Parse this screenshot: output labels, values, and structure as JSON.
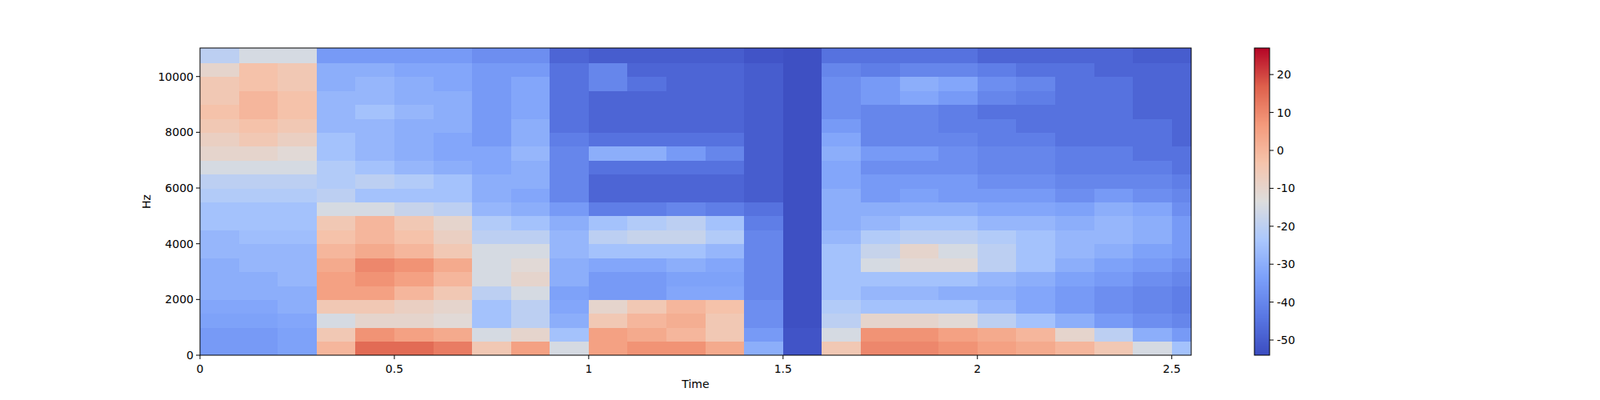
{
  "chart_data": {
    "type": "heatmap",
    "x_label": "Time",
    "y_label": "Hz",
    "x": [
      0,
      0.1,
      0.2,
      0.3,
      0.4,
      0.5,
      0.6,
      0.7,
      0.8,
      0.9,
      1.0,
      1.1,
      1.2,
      1.3,
      1.4,
      1.5,
      1.6,
      1.7,
      1.8,
      1.9,
      2.0,
      2.1,
      2.2,
      2.3,
      2.4,
      2.5
    ],
    "y": [
      0,
      500,
      1000,
      1500,
      2000,
      2500,
      3000,
      3500,
      4000,
      4500,
      5000,
      5500,
      6000,
      6500,
      7000,
      7500,
      8000,
      8500,
      9000,
      9500,
      10000,
      10500
    ],
    "values": [
      [
        -35,
        -35,
        -33,
        0,
        15,
        15,
        12,
        -5,
        5,
        -15,
        5,
        8,
        8,
        3,
        -30,
        -52,
        -5,
        10,
        10,
        8,
        5,
        3,
        0,
        -5,
        -15,
        -25
      ],
      [
        -35,
        -35,
        -33,
        -5,
        8,
        5,
        3,
        -15,
        -10,
        -25,
        5,
        3,
        0,
        -5,
        -35,
        -52,
        -15,
        8,
        8,
        5,
        3,
        0,
        -10,
        -20,
        -30,
        -35
      ],
      [
        -33,
        -33,
        -32,
        -15,
        -10,
        -10,
        -12,
        -25,
        -20,
        -30,
        -5,
        0,
        2,
        -5,
        -38,
        -53,
        -20,
        -10,
        -10,
        -12,
        -20,
        -25,
        -30,
        -35,
        -38,
        -40
      ],
      [
        -32,
        -32,
        -30,
        -5,
        -5,
        -8,
        -10,
        -25,
        -20,
        -32,
        -10,
        -5,
        0,
        -3,
        -38,
        -53,
        -22,
        -25,
        -25,
        -25,
        -28,
        -32,
        -35,
        -38,
        -40,
        -42
      ],
      [
        -30,
        -30,
        -30,
        5,
        5,
        0,
        -5,
        -20,
        -15,
        -33,
        -35,
        -35,
        -32,
        -32,
        -40,
        -53,
        -25,
        -28,
        -28,
        -30,
        -30,
        -32,
        -35,
        -38,
        -40,
        -42
      ],
      [
        -30,
        -30,
        -28,
        5,
        8,
        5,
        0,
        -15,
        -10,
        -30,
        -35,
        -35,
        -33,
        -33,
        -40,
        -53,
        -25,
        -25,
        -25,
        -25,
        -28,
        -30,
        -33,
        -35,
        -38,
        -40
      ],
      [
        -30,
        -28,
        -28,
        3,
        10,
        8,
        3,
        -15,
        -12,
        -30,
        -32,
        -32,
        -30,
        -32,
        -40,
        -53,
        -25,
        -15,
        -12,
        -12,
        -20,
        -25,
        -30,
        -33,
        -35,
        -38
      ],
      [
        -28,
        -28,
        -28,
        0,
        3,
        0,
        -5,
        -15,
        -15,
        -28,
        -25,
        -25,
        -25,
        -28,
        -40,
        -53,
        -25,
        -18,
        -10,
        -15,
        -20,
        -25,
        -28,
        -30,
        -33,
        -35
      ],
      [
        -28,
        -26,
        -26,
        -3,
        0,
        -3,
        -8,
        -20,
        -20,
        -28,
        -20,
        -18,
        -18,
        -22,
        -40,
        -53,
        -28,
        -22,
        -20,
        -20,
        -22,
        -25,
        -28,
        -28,
        -30,
        -35
      ],
      [
        -25,
        -25,
        -25,
        -5,
        0,
        -5,
        -10,
        -22,
        -25,
        -30,
        -25,
        -22,
        -20,
        -25,
        -42,
        -53,
        -30,
        -28,
        -25,
        -25,
        -28,
        -28,
        -30,
        -28,
        -30,
        -35
      ],
      [
        -25,
        -25,
        -25,
        -15,
        -15,
        -18,
        -20,
        -28,
        -30,
        -35,
        -42,
        -42,
        -40,
        -42,
        -45,
        -53,
        -30,
        -30,
        -30,
        -30,
        -32,
        -32,
        -33,
        -30,
        -32,
        -38
      ],
      [
        -22,
        -22,
        -22,
        -20,
        -25,
        -25,
        -25,
        -30,
        -32,
        -40,
        -48,
        -48,
        -48,
        -48,
        -50,
        -53,
        -30,
        -35,
        -33,
        -35,
        -35,
        -35,
        -38,
        -35,
        -38,
        -40
      ],
      [
        -20,
        -20,
        -20,
        -22,
        -20,
        -22,
        -25,
        -30,
        -30,
        -40,
        -48,
        -48,
        -48,
        -48,
        -50,
        -53,
        -32,
        -35,
        -35,
        -35,
        -38,
        -38,
        -40,
        -40,
        -40,
        -42
      ],
      [
        -15,
        -15,
        -15,
        -22,
        -25,
        -28,
        -30,
        -32,
        -30,
        -40,
        -45,
        -45,
        -45,
        -45,
        -50,
        -53,
        -32,
        -38,
        -38,
        -38,
        -40,
        -40,
        -42,
        -42,
        -42,
        -45
      ],
      [
        -10,
        -10,
        -12,
        -25,
        -28,
        -30,
        -32,
        -32,
        -28,
        -40,
        -30,
        -30,
        -35,
        -40,
        -50,
        -53,
        -30,
        -35,
        -35,
        -38,
        -40,
        -40,
        -42,
        -42,
        -45,
        -45
      ],
      [
        -8,
        -5,
        -8,
        -25,
        -28,
        -30,
        -32,
        -35,
        -30,
        -42,
        -45,
        -45,
        -45,
        -45,
        -50,
        -53,
        -32,
        -40,
        -40,
        -40,
        -42,
        -42,
        -45,
        -45,
        -45,
        -48
      ],
      [
        -5,
        -3,
        -5,
        -28,
        -28,
        -30,
        -30,
        -35,
        -30,
        -45,
        -48,
        -48,
        -48,
        -48,
        -50,
        -53,
        -35,
        -40,
        -40,
        -42,
        -42,
        -45,
        -45,
        -45,
        -45,
        -48
      ],
      [
        -3,
        0,
        -3,
        -28,
        -25,
        -28,
        -30,
        -35,
        -32,
        -45,
        -48,
        -48,
        -48,
        -48,
        -50,
        -53,
        -38,
        -40,
        -40,
        -42,
        -45,
        -45,
        -45,
        -45,
        -48,
        -48
      ],
      [
        -5,
        0,
        -3,
        -28,
        -28,
        -30,
        -30,
        -35,
        -32,
        -45,
        -48,
        -48,
        -48,
        -48,
        -50,
        -53,
        -38,
        -35,
        -32,
        -35,
        -40,
        -42,
        -45,
        -45,
        -48,
        -48
      ],
      [
        -5,
        -3,
        -5,
        -30,
        -28,
        -30,
        -32,
        -35,
        -32,
        -45,
        -40,
        -45,
        -48,
        -48,
        -50,
        -53,
        -38,
        -35,
        -30,
        -32,
        -38,
        -40,
        -45,
        -45,
        -48,
        -48
      ],
      [
        -10,
        -3,
        -5,
        -30,
        -30,
        -32,
        -32,
        -35,
        -35,
        -45,
        -40,
        -48,
        -48,
        -48,
        -50,
        -53,
        -40,
        -42,
        -40,
        -40,
        -42,
        -45,
        -45,
        -48,
        -48,
        -48
      ],
      [
        -20,
        -15,
        -15,
        -35,
        -35,
        -35,
        -35,
        -38,
        -38,
        -48,
        -50,
        -50,
        -50,
        -50,
        -52,
        -53,
        -45,
        -45,
        -45,
        -45,
        -48,
        -48,
        -48,
        -48,
        -50,
        -50
      ]
    ],
    "xlim": [
      0,
      2.55
    ],
    "ylim": [
      0,
      11025
    ],
    "xticks": [
      0,
      0.5,
      1,
      1.5,
      2,
      2.5
    ],
    "yticks": [
      0,
      2000,
      4000,
      6000,
      8000,
      10000
    ],
    "color": "coolwarm",
    "colorbar": {
      "range": [
        -54,
        27
      ],
      "ticks": [
        -50,
        -40,
        -30,
        -20,
        -10,
        0,
        10,
        20
      ]
    }
  }
}
